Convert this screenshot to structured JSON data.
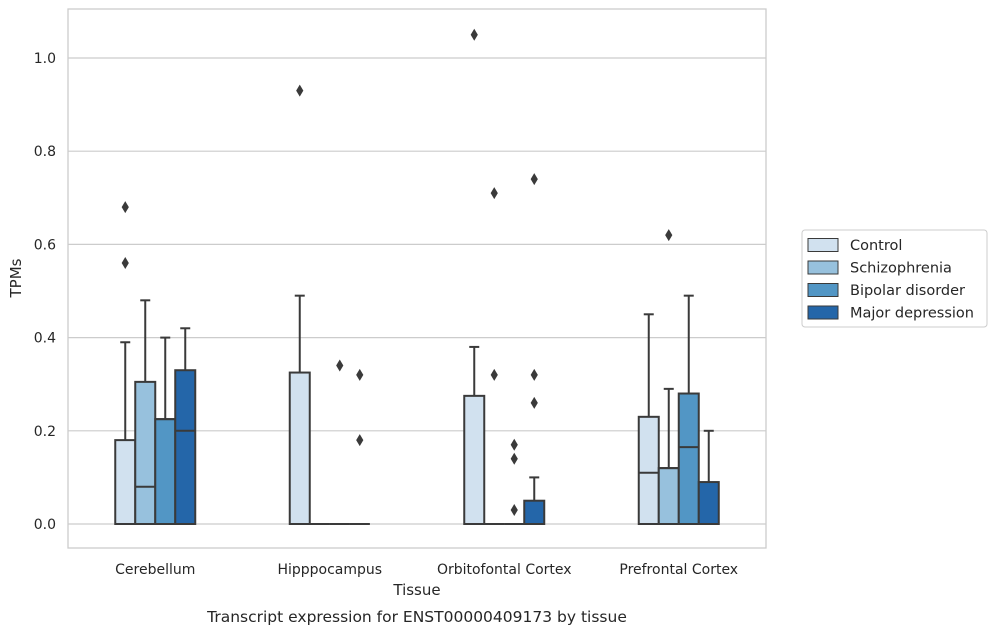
{
  "caption": "Transcript expression for ENST00000409173 by tissue",
  "chart_data": {
    "type": "box",
    "xlabel": "Tissue",
    "ylabel": "TPMs",
    "ylim": [
      -0.05,
      1.1
    ],
    "yticks": [
      "0.0",
      "0.2",
      "0.4",
      "0.6",
      "0.8",
      "1.0"
    ],
    "grid": "horizontal",
    "legend_position": "right",
    "categories": [
      "Cerebellum",
      "Hipppocampus",
      "Orbitofontal Cortex",
      "Prefrontal Cortex"
    ],
    "series": [
      {
        "name": "Control",
        "color": "#d1e1ef",
        "boxes": [
          {
            "q1": 0.0,
            "median": 0.0,
            "q3": 0.18,
            "whisker_low": 0.0,
            "whisker_high": 0.39,
            "outliers": [
              0.56,
              0.68
            ]
          },
          {
            "q1": 0.0,
            "median": 0.0,
            "q3": 0.325,
            "whisker_low": 0.0,
            "whisker_high": 0.49,
            "outliers": [
              0.93
            ]
          },
          {
            "q1": 0.0,
            "median": 0.0,
            "q3": 0.275,
            "whisker_low": 0.0,
            "whisker_high": 0.38,
            "outliers": [
              1.05
            ]
          },
          {
            "q1": 0.0,
            "median": 0.11,
            "q3": 0.23,
            "whisker_low": 0.0,
            "whisker_high": 0.45,
            "outliers": []
          }
        ]
      },
      {
        "name": "Schizophrenia",
        "color": "#97c1dd",
        "boxes": [
          {
            "q1": 0.0,
            "median": 0.08,
            "q3": 0.305,
            "whisker_low": 0.0,
            "whisker_high": 0.48,
            "outliers": []
          },
          {
            "q1": 0.0,
            "median": 0.0,
            "q3": 0.0,
            "whisker_low": 0.0,
            "whisker_high": 0.0,
            "outliers": []
          },
          {
            "q1": 0.0,
            "median": 0.0,
            "q3": 0.0,
            "whisker_low": 0.0,
            "whisker_high": 0.0,
            "outliers": [
              0.71,
              0.32
            ]
          },
          {
            "q1": 0.0,
            "median": 0.12,
            "q3": 0.12,
            "whisker_low": 0.0,
            "whisker_high": 0.29,
            "outliers": [
              0.62
            ]
          }
        ]
      },
      {
        "name": "Bipolar disorder",
        "color": "#5296c5",
        "boxes": [
          {
            "q1": 0.0,
            "median": 0.225,
            "q3": 0.225,
            "whisker_low": 0.0,
            "whisker_high": 0.4,
            "outliers": []
          },
          {
            "q1": 0.0,
            "median": 0.0,
            "q3": 0.0,
            "whisker_low": 0.0,
            "whisker_high": 0.0,
            "outliers": [
              0.34
            ]
          },
          {
            "q1": 0.0,
            "median": 0.0,
            "q3": 0.0,
            "whisker_low": 0.0,
            "whisker_high": 0.0,
            "outliers": [
              0.17,
              0.14,
              0.03
            ]
          },
          {
            "q1": 0.0,
            "median": 0.165,
            "q3": 0.28,
            "whisker_low": 0.0,
            "whisker_high": 0.49,
            "outliers": []
          }
        ]
      },
      {
        "name": "Major depression",
        "color": "#2466a9",
        "boxes": [
          {
            "q1": 0.0,
            "median": 0.2,
            "q3": 0.33,
            "whisker_low": 0.0,
            "whisker_high": 0.42,
            "outliers": []
          },
          {
            "q1": 0.0,
            "median": 0.0,
            "q3": 0.0,
            "whisker_low": 0.0,
            "whisker_high": 0.0,
            "outliers": [
              0.32,
              0.18
            ]
          },
          {
            "q1": 0.0,
            "median": 0.0,
            "q3": 0.05,
            "whisker_low": 0.0,
            "whisker_high": 0.1,
            "outliers": [
              0.74,
              0.32,
              0.26
            ]
          },
          {
            "q1": 0.0,
            "median": 0.0,
            "q3": 0.09,
            "whisker_low": 0.0,
            "whisker_high": 0.2,
            "outliers": []
          }
        ]
      }
    ]
  }
}
